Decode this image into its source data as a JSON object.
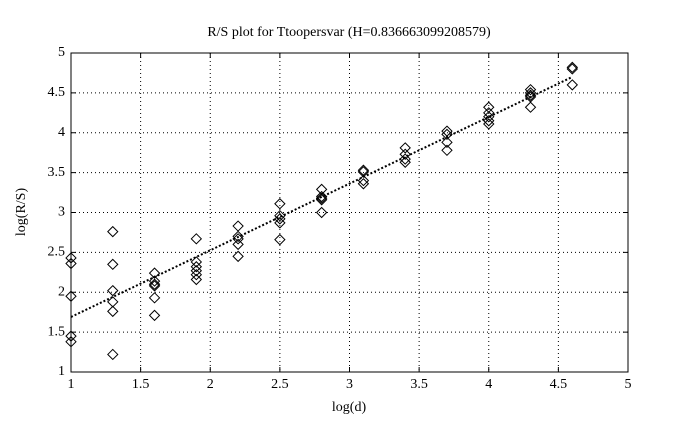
{
  "chart_data": {
    "type": "scatter",
    "title": "R/S plot for Ttoopersvar (H=0.836663099208579)",
    "x_label": "log(d)",
    "y_label": "log(R/S)",
    "xlim": [
      1,
      5
    ],
    "ylim": [
      1,
      5
    ],
    "xticks": [
      1,
      1.5,
      2,
      2.5,
      3,
      3.5,
      4,
      4.5,
      5
    ],
    "yticks": [
      1,
      1.5,
      2,
      2.5,
      3,
      3.5,
      4,
      4.5,
      5
    ],
    "grid": true,
    "color": "#000000",
    "marker": "diamond",
    "x": [
      1,
      1,
      1,
      1,
      1,
      1.3,
      1.3,
      1.3,
      1.3,
      1.3,
      1.3,
      1.6,
      1.6,
      1.6,
      1.6,
      1.6,
      1.6,
      1.9,
      1.9,
      1.9,
      1.9,
      1.9,
      1.9,
      2.2,
      2.2,
      2.2,
      2.2,
      2.2,
      2.5,
      2.5,
      2.5,
      2.5,
      2.5,
      2.8,
      2.8,
      2.8,
      2.8,
      2.8,
      3.1,
      3.1,
      3.1,
      3.1,
      3.4,
      3.4,
      3.4,
      3.4,
      3.7,
      3.7,
      3.7,
      3.7,
      4,
      4,
      4,
      4,
      4,
      4.3,
      4.3,
      4.3,
      4.3,
      4.3,
      4.6,
      4.6,
      4.6
    ],
    "values": [
      2.43,
      2.36,
      1.95,
      1.45,
      1.38,
      2.76,
      2.35,
      2.02,
      1.88,
      1.76,
      1.22,
      2.24,
      2.14,
      2.1,
      2.08,
      1.93,
      1.71,
      2.67,
      2.38,
      2.32,
      2.27,
      2.22,
      2.16,
      2.83,
      2.7,
      2.67,
      2.6,
      2.45,
      3.11,
      2.96,
      2.92,
      2.87,
      2.66,
      3.29,
      3.2,
      3.18,
      3.16,
      3.0,
      3.53,
      3.51,
      3.4,
      3.36,
      3.81,
      3.73,
      3.67,
      3.63,
      4.02,
      3.98,
      3.88,
      3.78,
      4.32,
      4.25,
      4.2,
      4.15,
      4.11,
      4.54,
      4.5,
      4.47,
      4.45,
      4.32,
      4.82,
      4.8,
      4.6
    ],
    "fit": {
      "x": [
        1,
        4.6
      ],
      "y": [
        1.69,
        4.7
      ]
    }
  }
}
